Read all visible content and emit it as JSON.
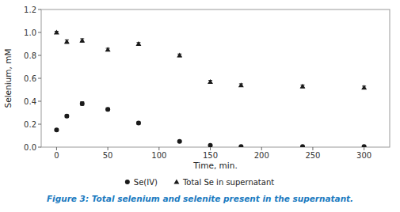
{
  "chart_data": {
    "type": "scatter",
    "x": [
      0,
      10,
      25,
      50,
      80,
      120,
      150,
      180,
      240,
      300
    ],
    "series": [
      {
        "name": "Se(IV)",
        "color": "#1a1a1a",
        "marker": "circle",
        "values": [
          0.15,
          0.27,
          0.38,
          0.33,
          0.21,
          0.05,
          0.015,
          0.005,
          0.005,
          0.005
        ],
        "errors": [
          0.01,
          0.012,
          0.015,
          0.012,
          0.01,
          0.006,
          0.005,
          0.004,
          0.004,
          0.004
        ]
      },
      {
        "name": "Total Se in supernatant",
        "color": "#1a1a1a",
        "marker": "triangle",
        "values": [
          1.0,
          0.92,
          0.93,
          0.85,
          0.9,
          0.8,
          0.57,
          0.54,
          0.53,
          0.52
        ],
        "errors": [
          0.01,
          0.015,
          0.015,
          0.012,
          0.012,
          0.012,
          0.012,
          0.012,
          0.012,
          0.012
        ]
      }
    ],
    "x_label": "Time, min.",
    "y_label": "Selenium, mM",
    "caption": "Figure 3: Total selenium and selenite present in the supernatant.",
    "xlim": [
      -15,
      325
    ],
    "ylim": [
      0,
      1.2
    ],
    "xticks": [
      0,
      50,
      100,
      150,
      200,
      250,
      300
    ],
    "yticks": [
      {
        "value": 0,
        "label": "0.0"
      },
      0.2,
      0.4,
      0.6,
      0.8,
      {
        "value": 1.0,
        "label": "1.0"
      },
      1.2
    ],
    "grid": false,
    "legend": "bottom"
  }
}
